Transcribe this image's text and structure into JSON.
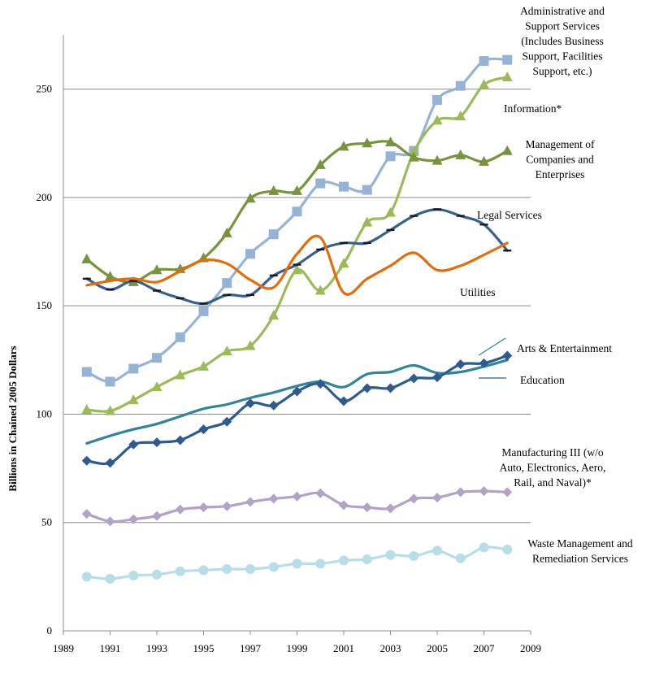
{
  "chart_data": {
    "type": "line",
    "title": "",
    "xlabel": "",
    "ylabel": "Billions in Chained 2005 Dollars",
    "xlim": [
      1989,
      2009
    ],
    "ylim": [
      0,
      275
    ],
    "x_ticks": [
      1989,
      1991,
      1993,
      1995,
      1997,
      1999,
      2001,
      2003,
      2005,
      2007,
      2009
    ],
    "y_ticks": [
      0,
      50,
      100,
      150,
      200,
      250
    ],
    "grid": "horizontal",
    "x": [
      1990,
      1991,
      1992,
      1993,
      1994,
      1995,
      1996,
      1997,
      1998,
      1999,
      2000,
      2001,
      2002,
      2003,
      2004,
      2005,
      2006,
      2007,
      2008
    ],
    "series": [
      {
        "name": "Administrative and Support Services (Includes Business Support, Facilities Support, etc.)",
        "label_lines": [
          "Administrative and",
          "Support Services",
          "(Includes Business",
          "Support, Facilities",
          "Support, etc.)"
        ],
        "color": "#95b3d7",
        "marker": "square",
        "values": [
          119.5,
          115,
          121,
          126,
          135.5,
          147.5,
          160.5,
          174,
          183,
          193.5,
          206.5,
          205,
          203.5,
          219,
          221.5,
          245,
          251.5,
          263,
          263.5
        ]
      },
      {
        "name": "Information*",
        "label_lines": [
          "Information*"
        ],
        "color": "#9bbb59",
        "marker": "triangle",
        "values": [
          102,
          101.5,
          106.5,
          112.5,
          118,
          122,
          129,
          131.5,
          145.5,
          166.5,
          157,
          169.5,
          188.5,
          193,
          221,
          235.5,
          237.5,
          252,
          255.5
        ]
      },
      {
        "name": "Management of Companies and Enterprises",
        "label_lines": [
          "Management of",
          "Companies and",
          "Enterprises"
        ],
        "color": "#77933c",
        "marker": "triangle",
        "values": [
          171.5,
          163.5,
          161,
          166.5,
          167,
          172,
          183.5,
          199.5,
          203,
          203,
          215,
          223.5,
          225,
          225.5,
          218.5,
          217,
          219.5,
          216.5,
          221.5
        ]
      },
      {
        "name": "Legal Services",
        "label_lines": [
          "Legal Services"
        ],
        "color": "#376092",
        "marker": "dash",
        "values": [
          162.5,
          157.5,
          161.5,
          157,
          153.5,
          151,
          155,
          155,
          164,
          169,
          176,
          179,
          179,
          185,
          191.5,
          194.5,
          191.5,
          187.5,
          175.5
        ]
      },
      {
        "name": "Utilities",
        "label_lines": [
          "Utilities"
        ],
        "color": "#e46c0a",
        "marker": "none",
        "values": [
          159.5,
          161.5,
          162.5,
          161,
          166,
          171,
          169.5,
          162,
          158.5,
          174,
          181.5,
          156,
          162.5,
          168.5,
          174.5,
          166.5,
          168.5,
          173.5,
          179
        ]
      },
      {
        "name": "Arts & Entertainment",
        "label_lines": [
          "Arts & Entertainment"
        ],
        "color": "#31849b",
        "marker": "none",
        "values": [
          86.5,
          90,
          93,
          95.5,
          99,
          102.5,
          104.5,
          107.5,
          110,
          113,
          115,
          112.5,
          118.5,
          119.5,
          122.5,
          119,
          119.5,
          122,
          125
        ]
      },
      {
        "name": "Education",
        "label_lines": [
          "Education"
        ],
        "color": "#2e5a8f",
        "marker": "diamond",
        "values": [
          78.5,
          77.5,
          86,
          87,
          88,
          93,
          96.5,
          105,
          104,
          110.5,
          114,
          106,
          112,
          112,
          116.5,
          117,
          123,
          123.5,
          127
        ]
      },
      {
        "name": "Manufacturing III (w/o Auto, Electronics, Aero, Rail, and Naval)*",
        "label_lines": [
          "Manufacturing III (w/o",
          "Auto, Electronics, Aero,",
          "Rail, and Naval)*"
        ],
        "color": "#b3a2c7",
        "marker": "diamond",
        "values": [
          54,
          50.5,
          51.5,
          53,
          56,
          57,
          57.5,
          59.5,
          61,
          62,
          63.5,
          58,
          57,
          56.5,
          61,
          61.5,
          64,
          64.5,
          64
        ]
      },
      {
        "name": "Waste Management and Remediation Services",
        "label_lines": [
          "Waste Management and",
          "Remediation Services"
        ],
        "color": "#b7dee8",
        "marker": "circle",
        "values": [
          25,
          24,
          25.5,
          26,
          27.5,
          28,
          28.5,
          28.5,
          29.5,
          31,
          31,
          32.5,
          33,
          35,
          34.5,
          37,
          33.5,
          38.5,
          37.5
        ]
      }
    ]
  }
}
